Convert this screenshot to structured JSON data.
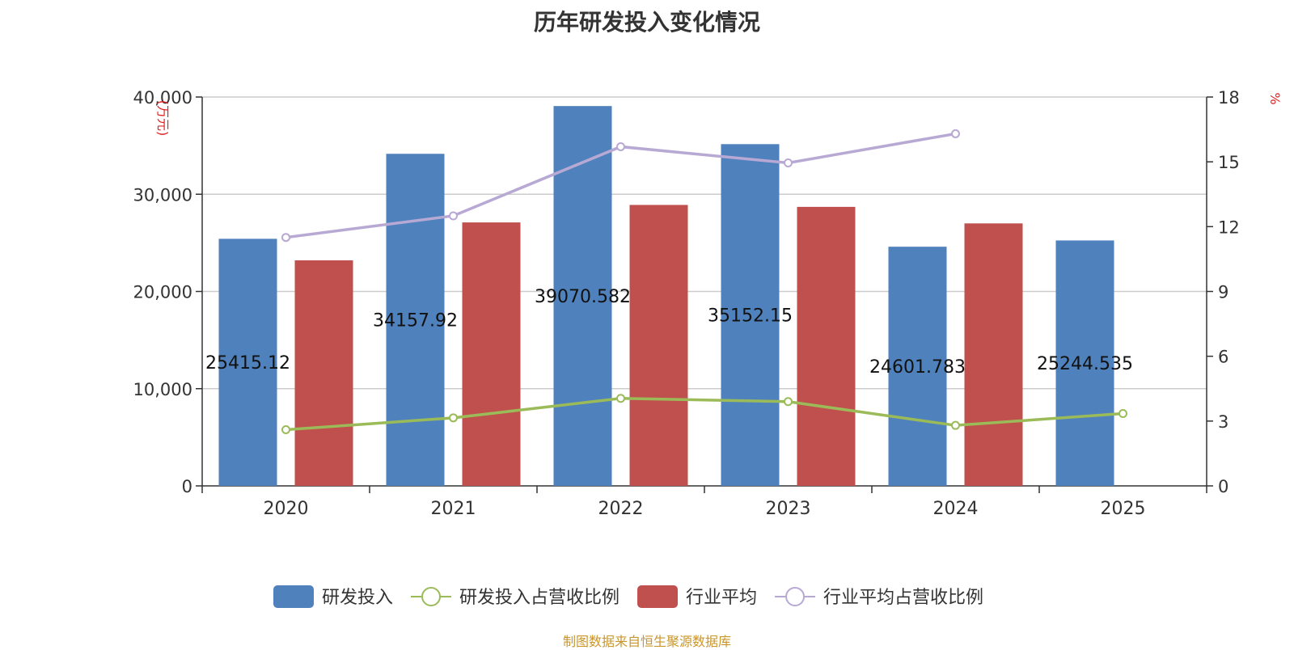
{
  "chart_data": {
    "type": "bar",
    "title": "历年研发投入变化情况",
    "categories": [
      "2020",
      "2021",
      "2022",
      "2023",
      "2024",
      "2025"
    ],
    "y_left": {
      "unit_label": "(万元)",
      "min": 0,
      "max": 40000,
      "ticks": [
        0,
        10000,
        20000,
        30000,
        40000
      ],
      "tick_labels": [
        "0",
        "10,000",
        "20,000",
        "30,000",
        "40,000"
      ]
    },
    "y_right": {
      "unit_label": "%",
      "min": 0,
      "max": 18,
      "ticks": [
        0,
        3,
        6,
        9,
        12,
        15,
        18
      ],
      "tick_labels": [
        "0",
        "3",
        "6",
        "9",
        "12",
        "15",
        "18"
      ]
    },
    "grid": true,
    "legend_position": "bottom",
    "series": [
      {
        "name": "研发投入",
        "type": "bar",
        "axis": "left",
        "color": "#4f81bd",
        "values": [
          25415.12,
          34157.92,
          39070.582,
          35152.15,
          24601.783,
          25244.535
        ],
        "labels": [
          "25415.12",
          "34157.92",
          "39070.582",
          "35152.15",
          "24601.783",
          "25244.535"
        ]
      },
      {
        "name": "研发投入占营收比例",
        "type": "line",
        "axis": "right",
        "color": "#9bbb59",
        "values": [
          2.6,
          3.15,
          4.05,
          3.9,
          2.8,
          3.35
        ]
      },
      {
        "name": "行业平均",
        "type": "bar",
        "axis": "left",
        "color": "#c0504d",
        "values": [
          23200,
          27100,
          28900,
          28700,
          27000,
          null
        ]
      },
      {
        "name": "行业平均占营收比例",
        "type": "line",
        "axis": "right",
        "color": "#b7a9d3",
        "values": [
          11.5,
          12.5,
          15.7,
          14.95,
          16.3,
          null
        ]
      }
    ],
    "source": "制图数据来自恒生聚源数据库"
  }
}
